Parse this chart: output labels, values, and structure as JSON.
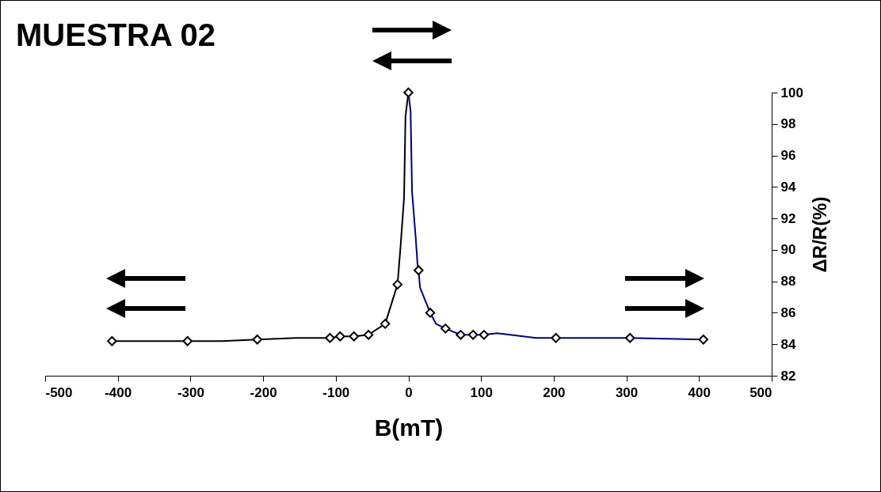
{
  "chart_data": {
    "type": "line",
    "title": "MUESTRA 02",
    "xlabel": "B(mT)",
    "ylabel": "ΔR/R(%)",
    "xlim": [
      -500,
      500
    ],
    "xticks": [
      -500,
      -400,
      -300,
      -200,
      -100,
      0,
      100,
      200,
      300,
      400,
      500
    ],
    "ylim": [
      82,
      100
    ],
    "yticks": [
      82,
      84,
      86,
      88,
      90,
      92,
      94,
      96,
      98,
      100
    ],
    "series": [
      {
        "type": "line",
        "color": "#000000",
        "x": [
          -408,
          -304,
          -257,
          -208,
          -155,
          -108,
          -94,
          -75,
          -55,
          -32,
          -15,
          -11,
          -6,
          -4,
          0
        ],
        "values": [
          84.2,
          84.2,
          84.2,
          84.3,
          84.4,
          84.4,
          84.5,
          84.5,
          84.6,
          85.3,
          87.8,
          90.1,
          93.3,
          98.5,
          100
        ]
      },
      {
        "type": "line",
        "color": "#000080",
        "x": [
          0,
          3,
          5,
          10,
          12.5,
          14,
          16,
          30,
          38,
          51,
          72,
          89,
          104,
          122,
          176,
          203,
          305,
          406
        ],
        "values": [
          100,
          98.8,
          93.7,
          90.8,
          89.1,
          88.7,
          87.6,
          86.0,
          85.3,
          85.0,
          84.6,
          84.6,
          84.6,
          84.7,
          84.4,
          84.4,
          84.4,
          84.3
        ]
      },
      {
        "type": "scatter",
        "color": "#000000",
        "marker": "diamond",
        "x": [
          -408,
          -304,
          -208,
          -108,
          -94,
          -75,
          -55,
          -32,
          -15,
          0,
          14,
          30,
          51,
          72,
          89,
          104,
          203,
          305,
          406
        ],
        "values": [
          84.2,
          84.2,
          84.3,
          84.4,
          84.5,
          84.5,
          84.6,
          85.3,
          87.8,
          100,
          88.7,
          86.0,
          85.0,
          84.6,
          84.6,
          84.6,
          84.4,
          84.4,
          84.3
        ]
      }
    ]
  }
}
